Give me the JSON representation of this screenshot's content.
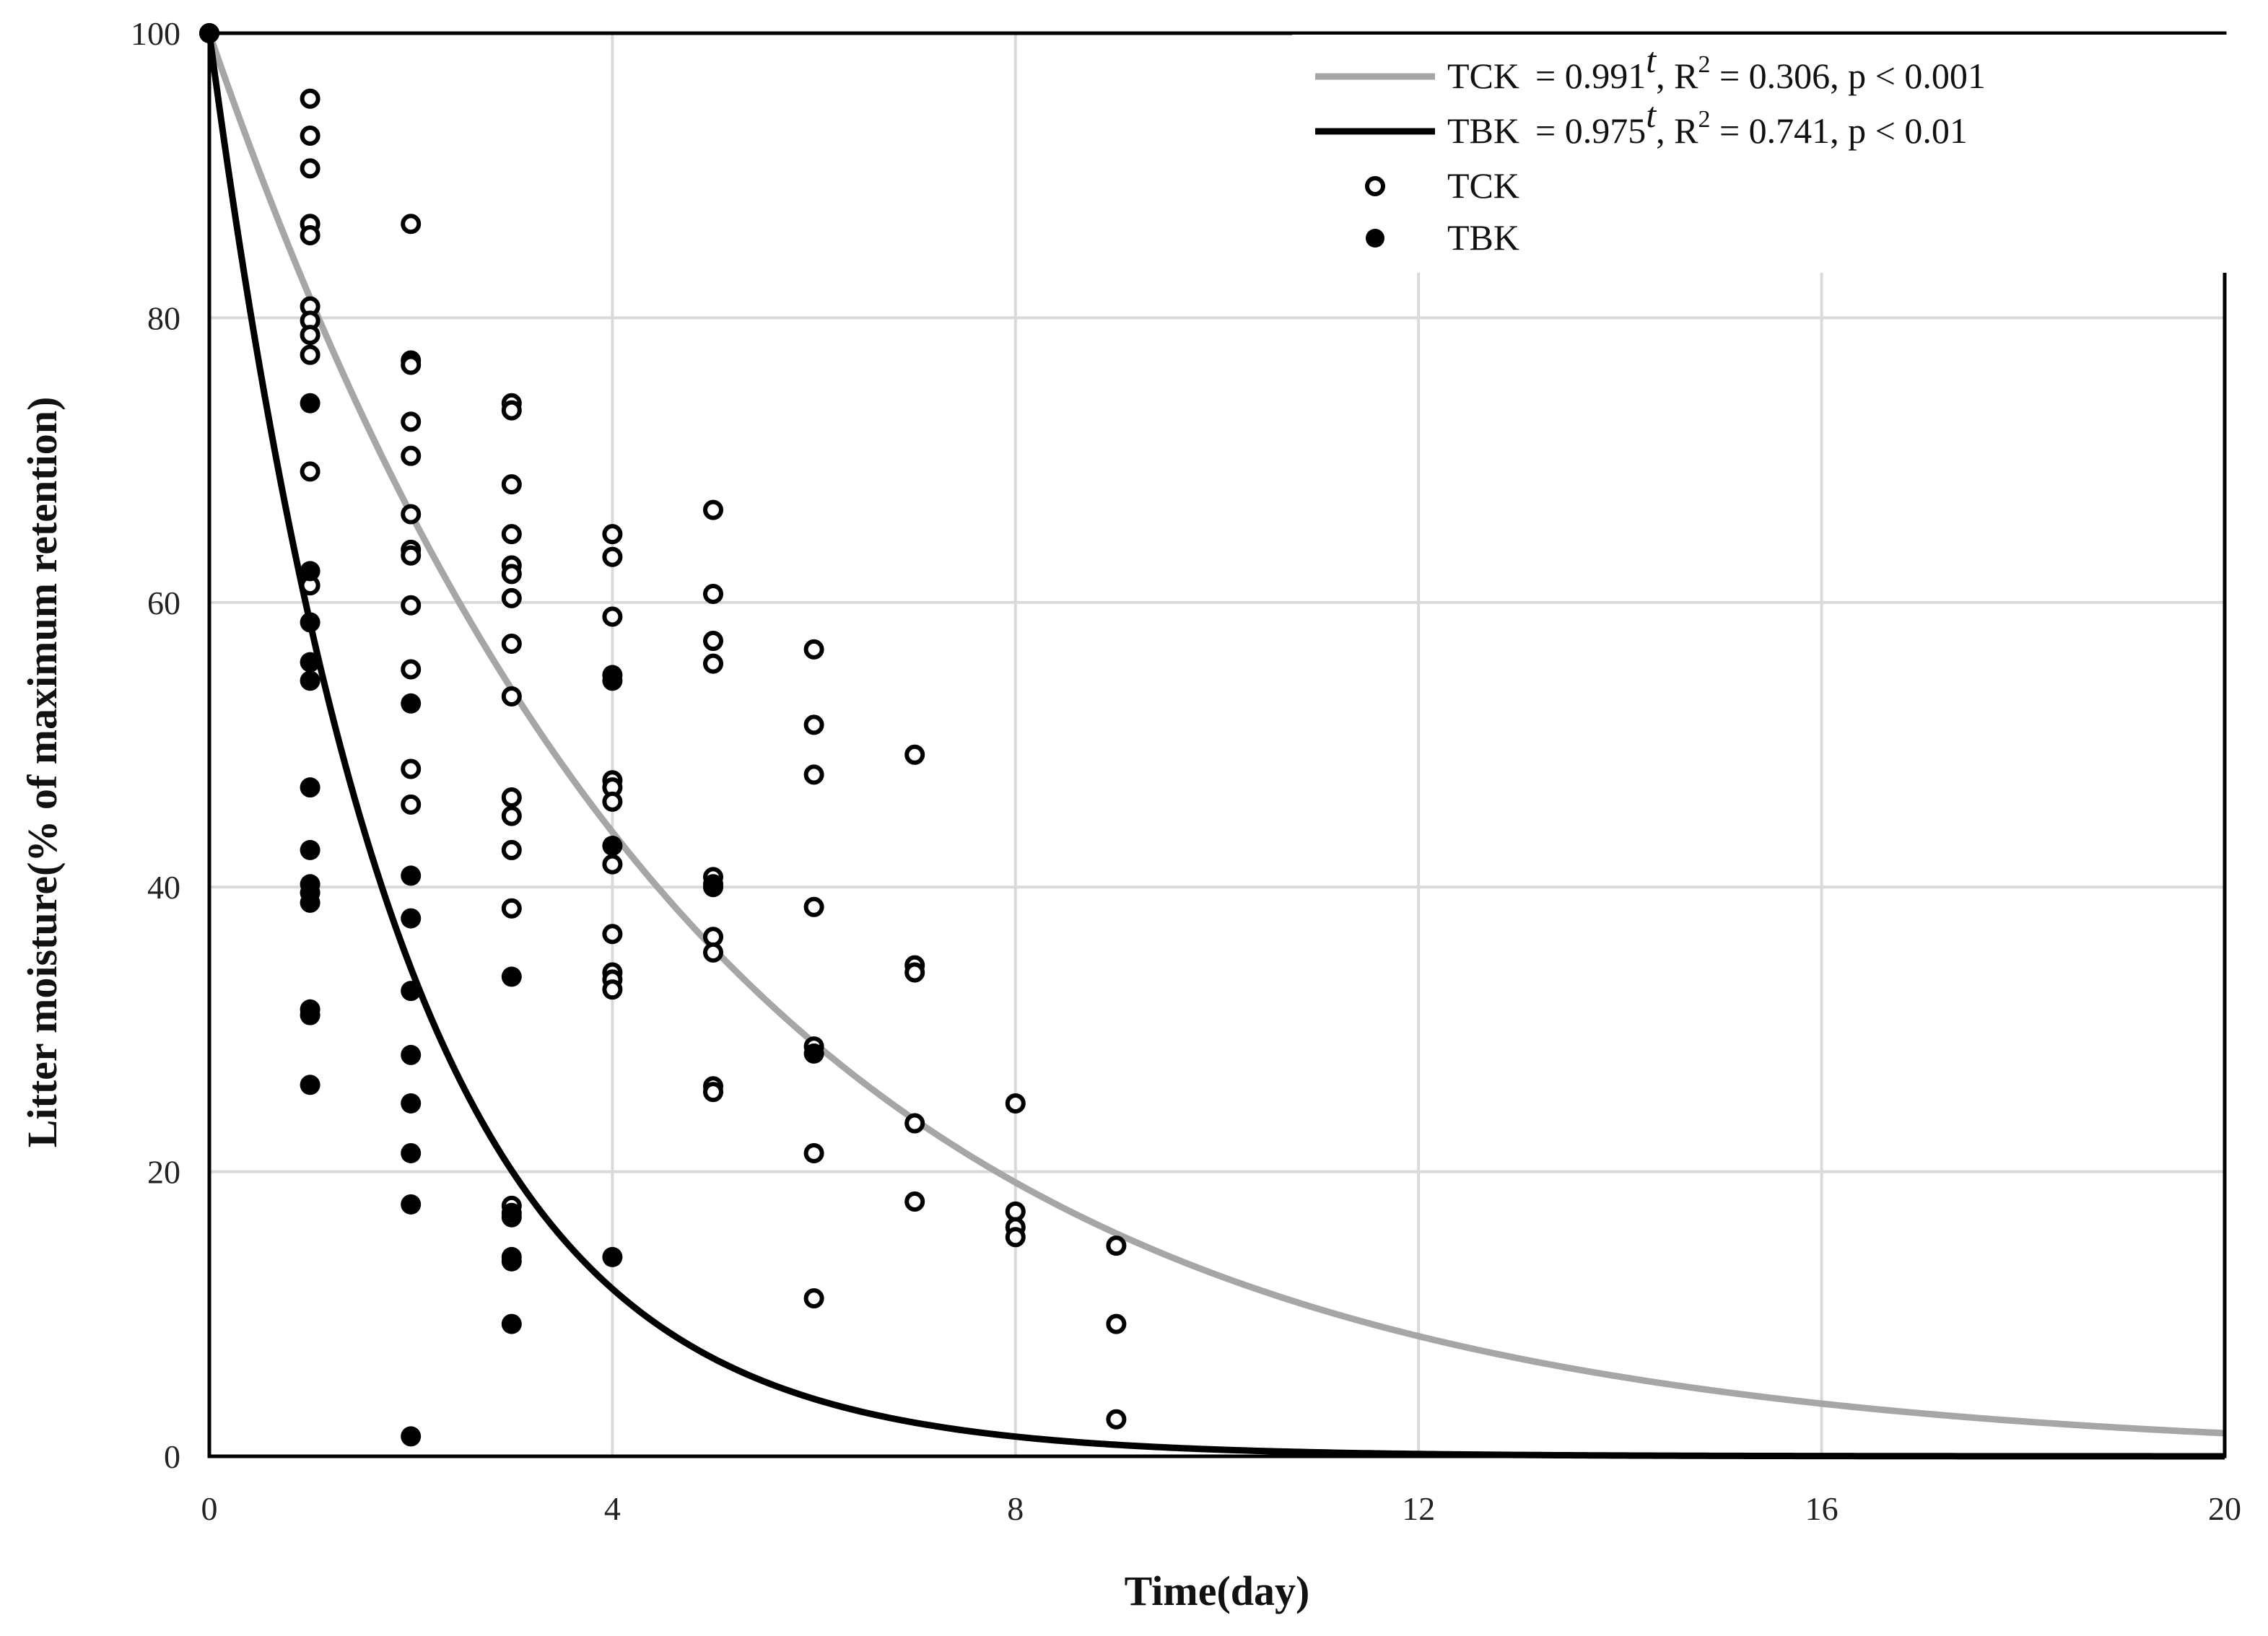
{
  "chart_data": {
    "type": "scatter",
    "title": "",
    "xlabel": "Time(day)",
    "ylabel": "Litter moisture(% of maximum retention)",
    "xlim": [
      0,
      20
    ],
    "ylim": [
      0,
      100
    ],
    "xticks": [
      0,
      4,
      8,
      12,
      16,
      20
    ],
    "yticks": [
      0,
      20,
      40,
      60,
      80,
      100
    ],
    "grid": true,
    "legend_position": "top-right",
    "colors": {
      "tck_fit": "#a6a6a6",
      "tbk_fit": "#000000",
      "grid": "#d9d9d9",
      "axis": "#000000"
    },
    "fits": [
      {
        "name": "TCK",
        "base": 0.991,
        "rate_note": "exponential fit, x = 100 at t = 0",
        "equation_parts": {
          "lhs": "TCK",
          "eq": "= 0.991",
          "exp": "t",
          "rest": ", R",
          "r_exp": "2",
          "r_val": " = 0.306, p < 0.001"
        }
      },
      {
        "name": "TBK",
        "base": 0.975,
        "equation_parts": {
          "lhs": "TBK",
          "eq": "= 0.975",
          "exp": "t",
          "rest": ", R",
          "r_exp": "2",
          "r_val": " = 0.741, p < 0.01"
        }
      }
    ],
    "legend": {
      "tck_points": "TCK",
      "tbk_points": "TBK"
    },
    "series": [
      {
        "name": "TCK",
        "marker": "open-circle",
        "points": [
          [
            0,
            100
          ],
          [
            1,
            95.4
          ],
          [
            1,
            92.8
          ],
          [
            1,
            90.5
          ],
          [
            1,
            86.6
          ],
          [
            1,
            85.8
          ],
          [
            1,
            80.8
          ],
          [
            1,
            79.8
          ],
          [
            1,
            78.8
          ],
          [
            1,
            77.4
          ],
          [
            1,
            69.2
          ],
          [
            1,
            61.2
          ],
          [
            2,
            86.6
          ],
          [
            2,
            77.0
          ],
          [
            2,
            76.7
          ],
          [
            2,
            72.7
          ],
          [
            2,
            70.3
          ],
          [
            2,
            66.2
          ],
          [
            2,
            63.7
          ],
          [
            2,
            63.3
          ],
          [
            2,
            59.8
          ],
          [
            2,
            55.3
          ],
          [
            2,
            48.3
          ],
          [
            2,
            45.8
          ],
          [
            3,
            74.0
          ],
          [
            3,
            73.5
          ],
          [
            3,
            68.3
          ],
          [
            3,
            64.8
          ],
          [
            3,
            62.6
          ],
          [
            3,
            62.0
          ],
          [
            3,
            60.3
          ],
          [
            3,
            57.1
          ],
          [
            3,
            53.4
          ],
          [
            3,
            46.3
          ],
          [
            3,
            45.0
          ],
          [
            3,
            42.6
          ],
          [
            3,
            38.5
          ],
          [
            3,
            17.6
          ],
          [
            3,
            16.8
          ],
          [
            4,
            64.8
          ],
          [
            4,
            63.2
          ],
          [
            4,
            59.0
          ],
          [
            4,
            47.5
          ],
          [
            4,
            47.0
          ],
          [
            4,
            46.0
          ],
          [
            4,
            41.6
          ],
          [
            4,
            36.7
          ],
          [
            4,
            34.0
          ],
          [
            4,
            33.5
          ],
          [
            4,
            32.8
          ],
          [
            5,
            66.5
          ],
          [
            5,
            60.6
          ],
          [
            5,
            57.3
          ],
          [
            5,
            55.7
          ],
          [
            5,
            40.7
          ],
          [
            5,
            40.0
          ],
          [
            5,
            36.5
          ],
          [
            5,
            35.4
          ],
          [
            5,
            26.0
          ],
          [
            5,
            25.6
          ],
          [
            6,
            56.7
          ],
          [
            6,
            51.4
          ],
          [
            6,
            47.9
          ],
          [
            6,
            38.6
          ],
          [
            6,
            28.8
          ],
          [
            6,
            21.3
          ],
          [
            6,
            11.1
          ],
          [
            7,
            49.3
          ],
          [
            7,
            34.5
          ],
          [
            7,
            34.0
          ],
          [
            7,
            23.4
          ],
          [
            7,
            17.9
          ],
          [
            8,
            24.8
          ],
          [
            8,
            17.2
          ],
          [
            8,
            16.1
          ],
          [
            8,
            15.4
          ],
          [
            9,
            14.8
          ],
          [
            9,
            9.3
          ],
          [
            9,
            2.6
          ]
        ]
      },
      {
        "name": "TBK",
        "marker": "filled-circle",
        "points": [
          [
            0,
            100
          ],
          [
            1,
            74.0
          ],
          [
            1,
            62.2
          ],
          [
            1,
            58.6
          ],
          [
            1,
            55.8
          ],
          [
            1,
            54.5
          ],
          [
            1,
            47.0
          ],
          [
            1,
            42.6
          ],
          [
            1,
            40.2
          ],
          [
            1,
            39.6
          ],
          [
            1,
            38.9
          ],
          [
            1,
            31.4
          ],
          [
            1,
            31.0
          ],
          [
            1,
            26.1
          ],
          [
            2,
            52.9
          ],
          [
            2,
            40.8
          ],
          [
            2,
            37.8
          ],
          [
            2,
            32.7
          ],
          [
            2,
            28.2
          ],
          [
            2,
            24.8
          ],
          [
            2,
            21.3
          ],
          [
            2,
            17.7
          ],
          [
            2,
            1.4
          ],
          [
            3,
            33.7
          ],
          [
            3,
            17.1
          ],
          [
            3,
            14.0
          ],
          [
            3,
            13.7
          ],
          [
            3,
            9.3
          ],
          [
            4,
            54.9
          ],
          [
            4,
            54.5
          ],
          [
            4,
            42.9
          ],
          [
            4,
            14.0
          ],
          [
            5,
            40.2
          ],
          [
            6,
            28.3
          ]
        ]
      }
    ]
  }
}
